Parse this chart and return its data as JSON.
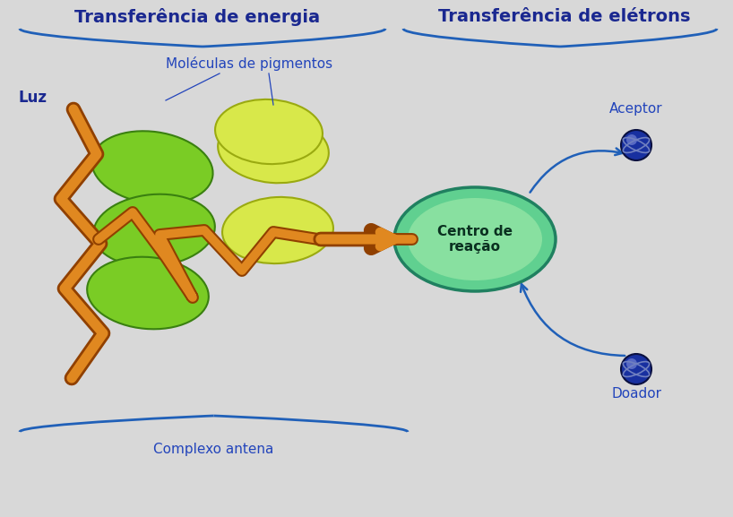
{
  "title": "",
  "bg_color": "#d8d8d8",
  "text_energia": "Transferência de energia",
  "text_eletrons": "Transferência de elétrons",
  "text_luz": "Luz",
  "text_moleculas": "Moléculas de pigmentos",
  "text_complexo": "Complexo antena",
  "text_centro": "Centro de\nreação",
  "text_aceptor": "Aceptor",
  "text_doador": "Doador",
  "ellipse_green_color": "#7acc25",
  "ellipse_green_dark": "#3a8010",
  "ellipse_yellow_color": "#d8e84a",
  "ellipse_yellow_dark": "#9aaa10",
  "centro_color_outer": "#60d090",
  "centro_color_inner": "#88e0a0",
  "centro_edge": "#208060",
  "lightning_color": "#e08820",
  "lightning_edge": "#904000",
  "arrow_color": "#e08820",
  "electron_color": "#1830a0",
  "electron_highlight": "#6878cc",
  "label_color": "#2244bb",
  "header_color": "#1a2890",
  "bracket_color": "#2060b8"
}
